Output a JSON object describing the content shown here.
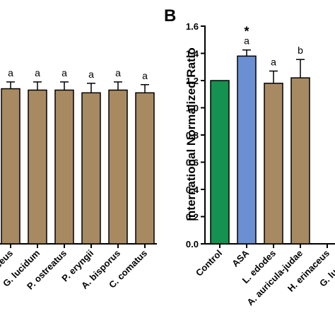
{
  "chart_data": [
    {
      "type": "bar",
      "categories": [
        "H. erinaceus",
        "G. lucidum",
        "P. ostreatus",
        "P. eryngii",
        "A. bisporus",
        "C. comatus"
      ],
      "values": [
        1.14,
        1.13,
        1.13,
        1.11,
        1.13,
        1.11
      ],
      "errors": [
        0.05,
        0.06,
        0.06,
        0.07,
        0.06,
        0.06
      ],
      "letters": [
        "a",
        "a",
        "a",
        "a",
        "a",
        "a"
      ],
      "color": "#a88a62",
      "ylim": [
        0,
        1.6
      ]
    },
    {
      "type": "bar",
      "panel_label": "B",
      "y_label": "International Normalized Ratio",
      "categories": [
        "Control",
        "ASA",
        "L. edodes",
        "A. auricula-judae",
        "H. erinaceus",
        "G. lucidum"
      ],
      "values": [
        1.2,
        1.38,
        1.18,
        1.22,
        null,
        null
      ],
      "errors": [
        null,
        0.045,
        0.09,
        0.135,
        null,
        null
      ],
      "letters": [
        null,
        "a",
        "a",
        "b",
        null,
        null
      ],
      "stars": [
        null,
        "*",
        null,
        null,
        null,
        null
      ],
      "colors": [
        "#159150",
        "#6a8fd2",
        "#a88a62",
        "#a88a62",
        "#a88a62",
        "#a88a62"
      ],
      "ylim": [
        0,
        1.6
      ],
      "yticks": [
        {
          "value": 0,
          "label": "0.0"
        },
        {
          "value": 0.2,
          "label": "0.2"
        },
        {
          "value": 0.4,
          "label": "0.4"
        },
        {
          "value": 0.6,
          "label": "0.6"
        },
        {
          "value": 0.8,
          "label": "0.8"
        },
        {
          "value": 1,
          "label": "1.0"
        },
        {
          "value": 1.2,
          "label": "1.2"
        },
        {
          "value": 1.4,
          "label": "1.4"
        },
        {
          "value": 1.6,
          "label": "1.6"
        }
      ]
    }
  ]
}
